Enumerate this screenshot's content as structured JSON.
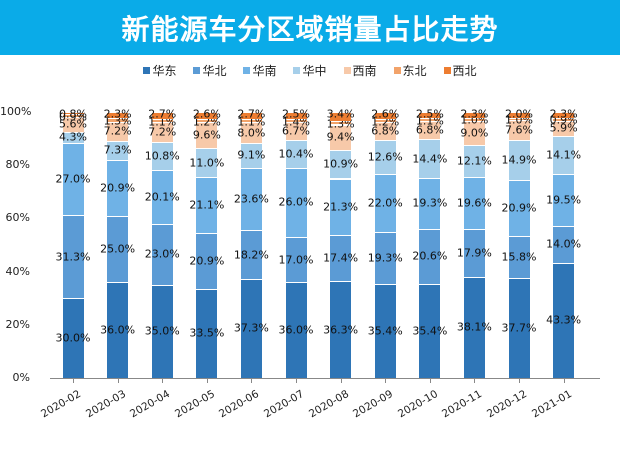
{
  "banner": {
    "title": "新能源车分区域销量占比走势"
  },
  "legend": [
    {
      "label": "华东",
      "color": "#2e75b6"
    },
    {
      "label": "华北",
      "color": "#5b9bd5"
    },
    {
      "label": "华南",
      "color": "#6fb2e6"
    },
    {
      "label": "华中",
      "color": "#a6cfea"
    },
    {
      "label": "西南",
      "color": "#f7c9a9"
    },
    {
      "label": "东北",
      "color": "#f2a36a"
    },
    {
      "label": "西北",
      "color": "#ed7d31"
    }
  ],
  "chart_data": {
    "type": "bar",
    "stacked": true,
    "title": "新能源车分区域销量占比走势",
    "xlabel": "",
    "ylabel": "",
    "ylim": [
      0,
      100
    ],
    "yticks": [
      "0%",
      "20%",
      "40%",
      "60%",
      "80%",
      "100%"
    ],
    "legend_position": "top",
    "grid": false,
    "categories": [
      "2020-02",
      "2020-03",
      "2020-04",
      "2020-05",
      "2020-06",
      "2020-07",
      "2020-08",
      "2020-09",
      "2020-10",
      "2020-11",
      "2020-12",
      "2021-01"
    ],
    "series": [
      {
        "name": "华东",
        "color": "#2e75b6",
        "values": [
          30.0,
          36.0,
          35.0,
          33.5,
          37.3,
          36.0,
          36.3,
          35.4,
          35.4,
          38.1,
          37.7,
          43.3
        ]
      },
      {
        "name": "华北",
        "color": "#5b9bd5",
        "values": [
          31.3,
          25.0,
          23.0,
          20.9,
          18.2,
          17.0,
          17.4,
          19.3,
          20.6,
          17.9,
          15.8,
          14.0
        ]
      },
      {
        "name": "华南",
        "color": "#6fb2e6",
        "values": [
          27.0,
          20.9,
          20.1,
          21.1,
          23.6,
          26.0,
          21.3,
          22.0,
          19.3,
          19.6,
          20.9,
          19.5
        ]
      },
      {
        "name": "华中",
        "color": "#a6cfea",
        "values": [
          4.3,
          7.3,
          10.8,
          11.0,
          9.1,
          10.4,
          10.9,
          12.6,
          14.4,
          12.1,
          14.9,
          14.1
        ]
      },
      {
        "name": "西南",
        "color": "#f7c9a9",
        "values": [
          5.6,
          7.2,
          7.2,
          9.6,
          8.0,
          6.7,
          9.4,
          6.8,
          6.8,
          9.0,
          7.6,
          5.9
        ]
      },
      {
        "name": "东北",
        "color": "#f2a36a",
        "values": [
          0.9,
          1.3,
          1.1,
          1.2,
          1.1,
          1.4,
          1.3,
          1.2,
          1.1,
          1.0,
          1.0,
          0.9
        ]
      },
      {
        "name": "西北",
        "color": "#ed7d31",
        "values": [
          0.8,
          2.3,
          2.7,
          2.6,
          2.7,
          2.5,
          3.4,
          2.6,
          2.5,
          2.3,
          2.0,
          2.3
        ]
      }
    ]
  }
}
